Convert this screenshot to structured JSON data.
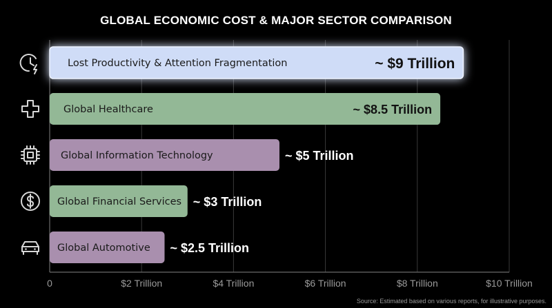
{
  "chart_data": {
    "type": "bar",
    "orientation": "horizontal",
    "title": "GLOBAL ECONOMIC COST & MAJOR SECTOR COMPARISON",
    "categories": [
      "Lost Productivity & Attention Fragmentation",
      "Global Healthcare",
      "Global Information Technology",
      "Global Financial Services",
      "Global Automotive"
    ],
    "values": [
      9,
      8.5,
      5,
      3,
      2.5
    ],
    "value_labels": [
      "~ $9 Trillion",
      "~ $8.5 Trillion",
      "~ $5 Trillion",
      "~ $3 Trillion",
      "~ $2.5 Trillion"
    ],
    "bar_colors": [
      "#cfdcf7",
      "#93b896",
      "#a98fae",
      "#93b896",
      "#a98fae"
    ],
    "icons": [
      "clock-lightning-icon",
      "medical-cross-icon",
      "microchip-icon",
      "dollar-coin-icon",
      "car-icon"
    ],
    "xlim": [
      0,
      10
    ],
    "x_ticks": [
      0,
      2,
      4,
      6,
      8,
      10
    ],
    "x_tick_labels": [
      "0",
      "$2 Trillion",
      "$4 Trillion",
      "$6 Trillion",
      "$8 Trillion",
      "$10 Trillion"
    ],
    "grid": true,
    "source_note": "Source: Estimated based on various reports, for illustrative purposes."
  }
}
